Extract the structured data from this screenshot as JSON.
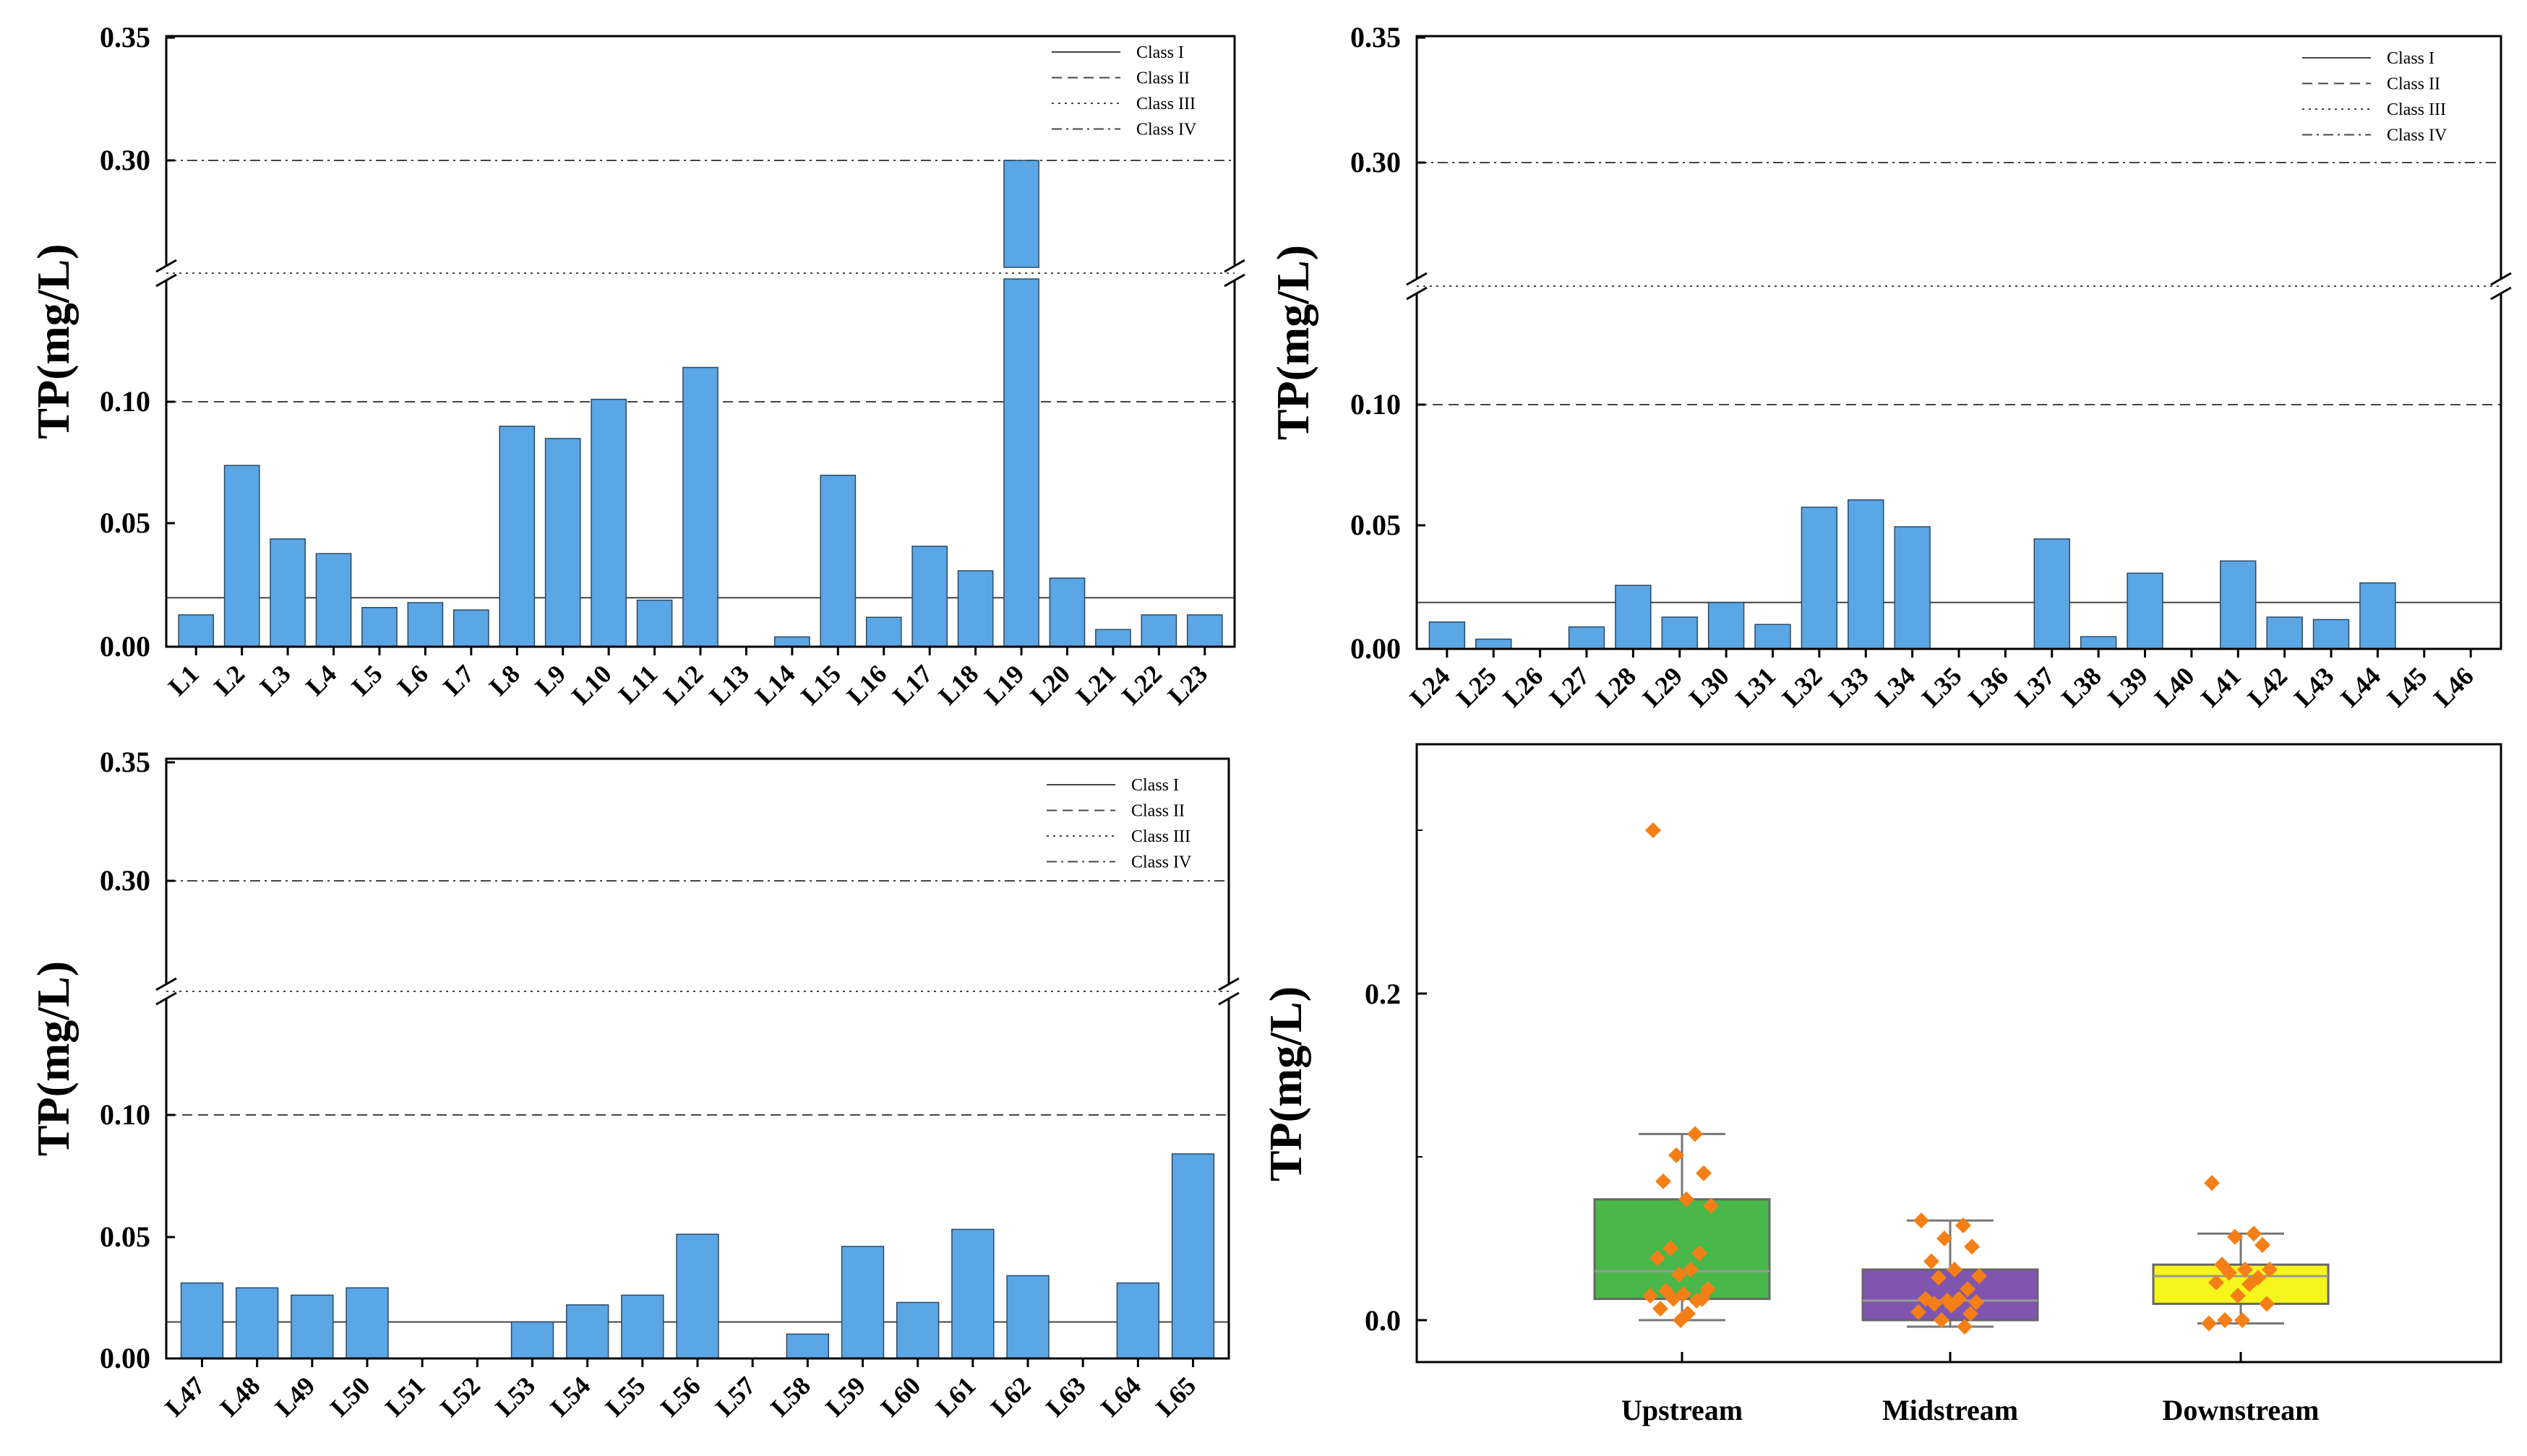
{
  "colors": {
    "bar": "#5ba6e5",
    "bar_edge": "#2a4a66",
    "upstream": "#49b749",
    "midstream": "#7f55b0",
    "downstream": "#f5f51b",
    "points": "#f57f17",
    "median": "#999999"
  },
  "chart_data": [
    {
      "id": "panel-a",
      "type": "bar",
      "ylabel": "TP(mg/L)",
      "yticks": [
        "0.00",
        "0.05",
        "0.10",
        "0.30",
        "0.35"
      ],
      "axis_break": [
        0.15,
        0.25
      ],
      "ylim": [
        0,
        0.35
      ],
      "legend": [
        "Class I",
        "Class II",
        "Class III",
        "Class IV"
      ],
      "legend_position": "top-right",
      "reference_lines": [
        {
          "name": "Class I",
          "value": 0.02,
          "style": "solid"
        },
        {
          "name": "Class II",
          "value": 0.1,
          "style": "dashed"
        },
        {
          "name": "Class III",
          "value": 0.2,
          "style": "dotted"
        },
        {
          "name": "Class IV",
          "value": 0.3,
          "style": "dashdot"
        }
      ],
      "categories": [
        "L1",
        "L2",
        "L3",
        "L4",
        "L5",
        "L6",
        "L7",
        "L8",
        "L9",
        "L10",
        "L11",
        "L12",
        "L13",
        "L14",
        "L15",
        "L16",
        "L17",
        "L18",
        "L19",
        "L20",
        "L21",
        "L22",
        "L23"
      ],
      "values": [
        0.013,
        0.074,
        0.044,
        0.038,
        0.016,
        0.018,
        0.015,
        0.09,
        0.085,
        0.101,
        0.019,
        0.114,
        0.0,
        0.004,
        0.07,
        0.012,
        0.041,
        0.031,
        0.3,
        0.028,
        0.007,
        0.013,
        0.013
      ]
    },
    {
      "id": "panel-b",
      "type": "bar",
      "ylabel": "TP(mg/L)",
      "yticks": [
        "0.00",
        "0.05",
        "0.10",
        "0.30",
        "0.35"
      ],
      "axis_break": [
        0.15,
        0.25
      ],
      "ylim": [
        0,
        0.35
      ],
      "legend": [
        "Class I",
        "Class II",
        "Class III",
        "Class IV"
      ],
      "legend_position": "top-right",
      "reference_lines": [
        {
          "name": "Class I",
          "value": 0.019,
          "style": "solid"
        },
        {
          "name": "Class II",
          "value": 0.1,
          "style": "dashed"
        },
        {
          "name": "Class III",
          "value": 0.2,
          "style": "dotted"
        },
        {
          "name": "Class IV",
          "value": 0.3,
          "style": "dashdot"
        }
      ],
      "categories": [
        "L24",
        "L25",
        "L26",
        "L27",
        "L28",
        "L29",
        "L30",
        "L31",
        "L32",
        "L33",
        "L34",
        "L35",
        "L36",
        "L37",
        "L38",
        "L39",
        "L40",
        "L41",
        "L42",
        "L43",
        "L44",
        "L45",
        "L46"
      ],
      "values": [
        0.011,
        0.004,
        0.0,
        0.009,
        0.026,
        0.013,
        0.019,
        0.01,
        0.058,
        0.061,
        0.05,
        0.0,
        0.0,
        0.045,
        0.005,
        0.031,
        0.0,
        0.036,
        0.013,
        0.012,
        0.027,
        0.0,
        0.0
      ]
    },
    {
      "id": "panel-c",
      "type": "bar",
      "ylabel": "TP(mg/L)",
      "yticks": [
        "0.00",
        "0.05",
        "0.10",
        "0.30",
        "0.35"
      ],
      "axis_break": [
        0.15,
        0.25
      ],
      "ylim": [
        0,
        0.35
      ],
      "legend": [
        "Class I",
        "Class II",
        "Class III",
        "Class IV"
      ],
      "legend_position": "top-right",
      "reference_lines": [
        {
          "name": "Class I",
          "value": 0.015,
          "style": "solid"
        },
        {
          "name": "Class II",
          "value": 0.1,
          "style": "dashed"
        },
        {
          "name": "Class III",
          "value": 0.2,
          "style": "dotted"
        },
        {
          "name": "Class IV",
          "value": 0.3,
          "style": "dashdot"
        }
      ],
      "categories": [
        "L47",
        "L48",
        "L49",
        "L50",
        "L51",
        "L52",
        "L53",
        "L54",
        "L55",
        "L56",
        "L57",
        "L58",
        "L59",
        "L60",
        "L61",
        "L62",
        "L63",
        "L64",
        "L65"
      ],
      "values": [
        0.031,
        0.029,
        0.026,
        0.029,
        0.0,
        0.0,
        0.015,
        0.022,
        0.026,
        0.051,
        0.0,
        0.01,
        0.046,
        0.023,
        0.053,
        0.034,
        0.0,
        0.031,
        0.084
      ]
    },
    {
      "id": "panel-d",
      "type": "box",
      "ylabel": "TP(mg/L)",
      "yticks": [
        "0.0",
        "0.2"
      ],
      "ylim": [
        -0.013,
        0.335
      ],
      "categories": [
        "Upstream",
        "Midstream",
        "Downstream"
      ],
      "boxes": [
        {
          "q1": 0.013,
          "median": 0.03,
          "q3": 0.074,
          "whisker_low": 0.0,
          "whisker_high": 0.114
        },
        {
          "q1": 0.0,
          "median": 0.012,
          "q3": 0.031,
          "whisker_low": -0.004,
          "whisker_high": 0.061
        },
        {
          "q1": 0.01,
          "median": 0.027,
          "q3": 0.034,
          "whisker_low": -0.002,
          "whisker_high": 0.053
        }
      ],
      "points": [
        [
          0.3,
          0.114,
          0.101,
          0.09,
          0.085,
          0.074,
          0.07,
          0.044,
          0.041,
          0.038,
          0.031,
          0.028,
          0.019,
          0.018,
          0.016,
          0.015,
          0.013,
          0.013,
          0.012,
          0.007,
          0.004,
          0.0
        ],
        [
          0.061,
          0.058,
          0.05,
          0.045,
          0.036,
          0.031,
          0.027,
          0.026,
          0.019,
          0.013,
          0.013,
          0.012,
          0.011,
          0.01,
          0.009,
          0.005,
          0.004,
          0.0,
          -0.004
        ],
        [
          0.084,
          0.053,
          0.051,
          0.046,
          0.034,
          0.031,
          0.031,
          0.029,
          0.026,
          0.023,
          0.022,
          0.015,
          0.01,
          0.0,
          0.0,
          -0.002
        ]
      ]
    }
  ]
}
